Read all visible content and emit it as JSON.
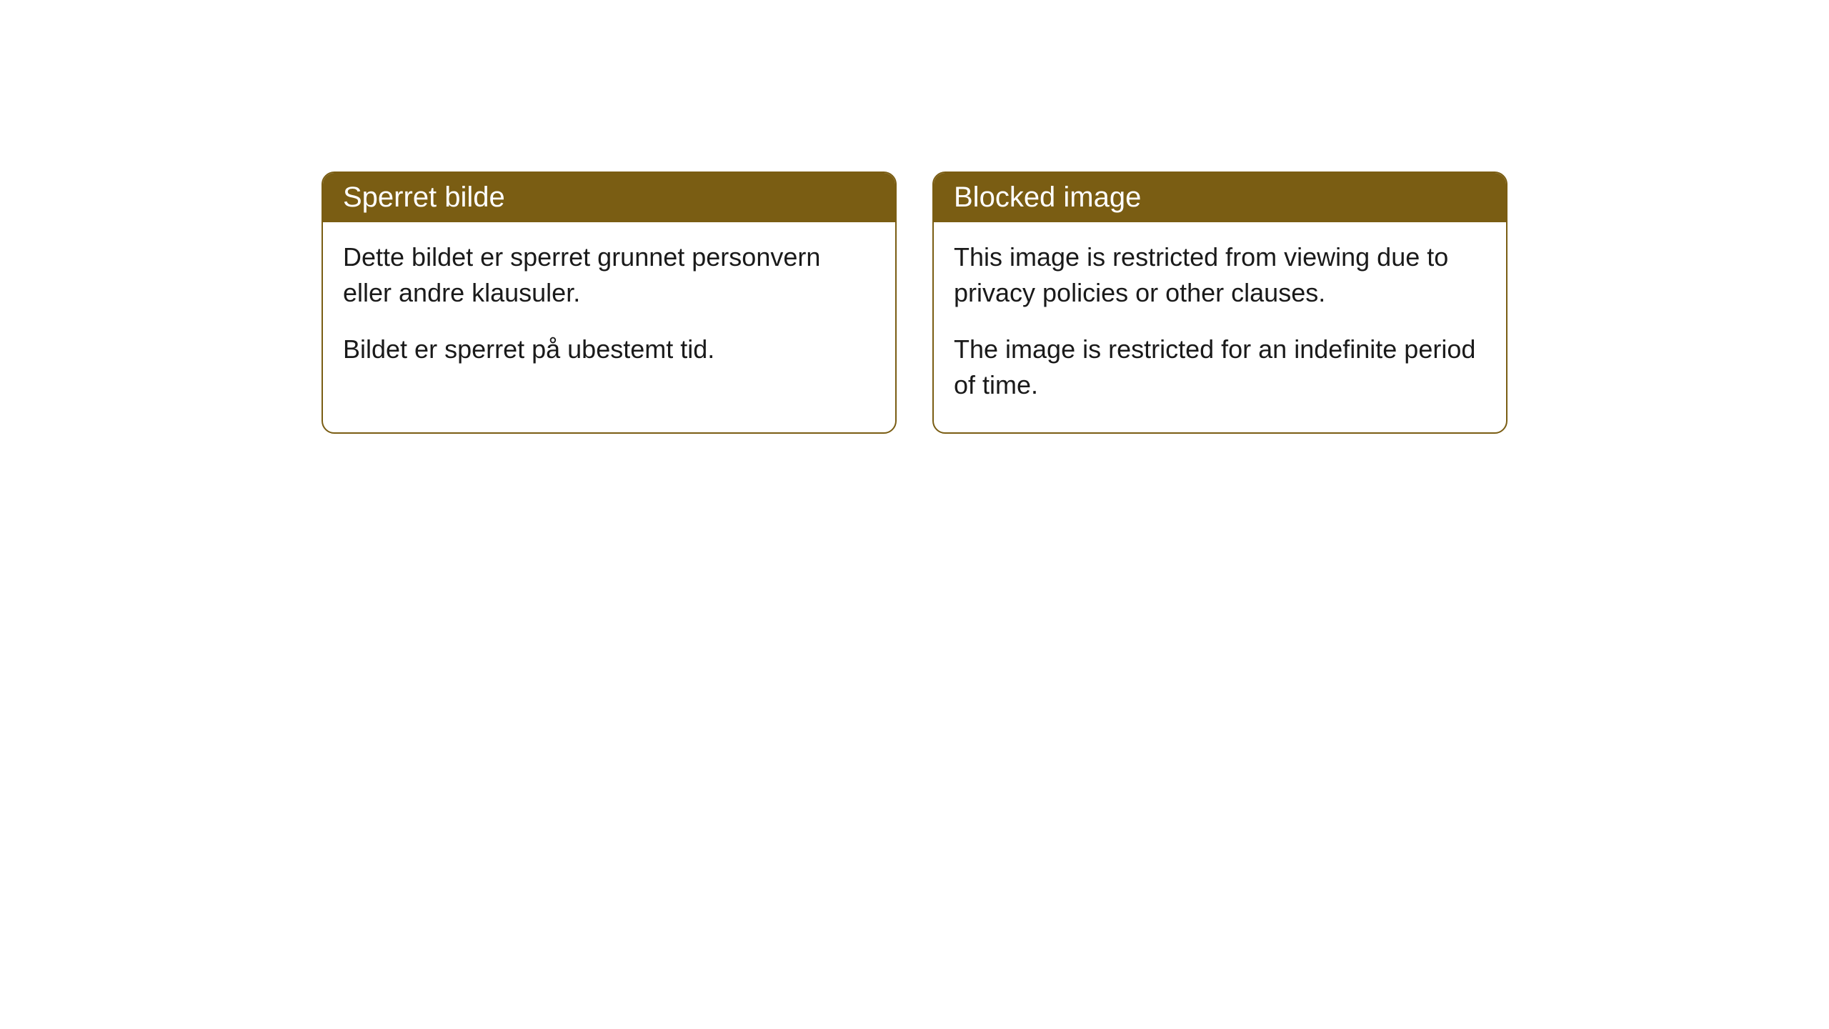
{
  "cards": [
    {
      "title": "Sperret bilde",
      "paragraph1": "Dette bildet er sperret grunnet personvern eller andre klausuler.",
      "paragraph2": "Bildet er sperret på ubestemt tid."
    },
    {
      "title": "Blocked image",
      "paragraph1": "This image is restricted from viewing due to privacy policies or other clauses.",
      "paragraph2": "The image is restricted for an indefinite period of time."
    }
  ],
  "styling": {
    "header_background": "#7a5d13",
    "header_text_color": "#ffffff",
    "border_color": "#7a5d13",
    "body_text_color": "#1a1a1a",
    "card_background": "#ffffff",
    "page_background": "#ffffff",
    "border_radius": 18,
    "title_fontsize": 40,
    "body_fontsize": 36
  }
}
